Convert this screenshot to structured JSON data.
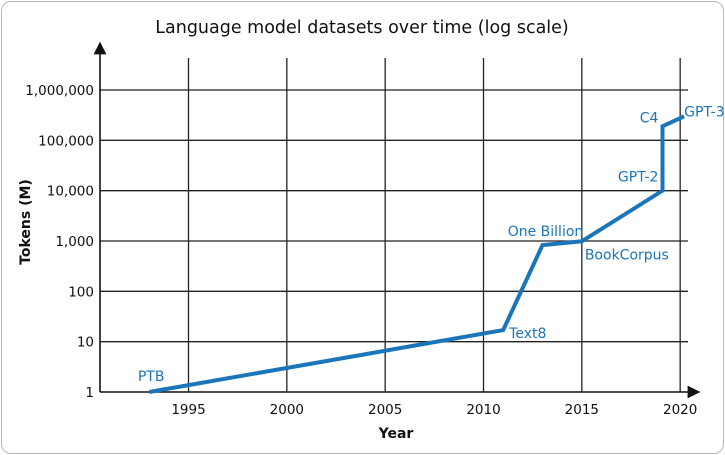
{
  "chart_data": {
    "type": "line",
    "title": "Language model datasets over time (log scale)",
    "xlabel": "Year",
    "ylabel": "Tokens (M)",
    "y_scale": "log",
    "xlim": [
      1990.5,
      2020.5
    ],
    "ylim": [
      1,
      1000000
    ],
    "grid": true,
    "line_color": "#1b75bb",
    "label_color": "#1b75bb",
    "x_ticks": [
      {
        "value": 1995,
        "label": "1995"
      },
      {
        "value": 2000,
        "label": "2000"
      },
      {
        "value": 2005,
        "label": "2005"
      },
      {
        "value": 2010,
        "label": "2010"
      },
      {
        "value": 2015,
        "label": "2015"
      },
      {
        "value": 2020,
        "label": "2020"
      }
    ],
    "y_ticks": [
      {
        "value": 1,
        "label": "1"
      },
      {
        "value": 10,
        "label": "10"
      },
      {
        "value": 100,
        "label": "100"
      },
      {
        "value": 1000,
        "label": "1,000"
      },
      {
        "value": 10000,
        "label": "10,000"
      },
      {
        "value": 100000,
        "label": "100,000"
      },
      {
        "value": 1000000,
        "label": "1,000,000"
      }
    ],
    "points": [
      {
        "label": "PTB",
        "x": 1993,
        "y": 1
      },
      {
        "label": "Text8",
        "x": 2011,
        "y": 17
      },
      {
        "label": "One Billion",
        "x": 2013,
        "y": 830
      },
      {
        "label": "BookCorpus",
        "x": 2015,
        "y": 985
      },
      {
        "label": "GPT-2",
        "x": 2019.1,
        "y": 10000
      },
      {
        "label": "C4",
        "x": 2019.1,
        "y": 190000
      },
      {
        "label": "GPT-3",
        "x": 2020.2,
        "y": 300000
      }
    ]
  }
}
